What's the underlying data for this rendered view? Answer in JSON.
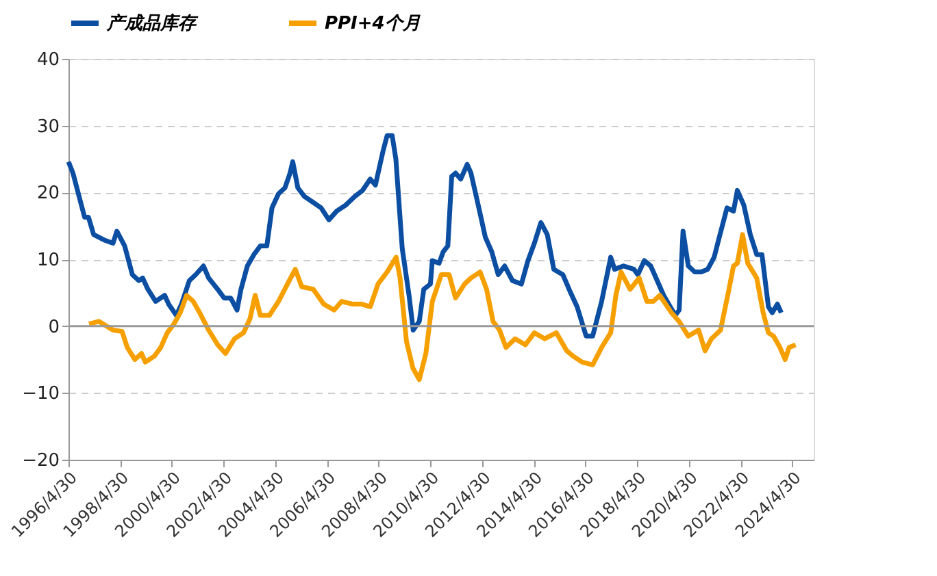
{
  "chart_data": {
    "type": "line",
    "xlim": [
      "1996-04-30",
      "2025-02-25"
    ],
    "xticks": [
      {
        "value": "1996-04-30",
        "label": "1996/4/30"
      },
      {
        "value": "1998-04-30",
        "label": "1998/4/30"
      },
      {
        "value": "2000-04-30",
        "label": "2000/4/30"
      },
      {
        "value": "2002-04-30",
        "label": "2002/4/30"
      },
      {
        "value": "2004-04-30",
        "label": "2004/4/30"
      },
      {
        "value": "2006-04-30",
        "label": "2006/4/30"
      },
      {
        "value": "2008-04-30",
        "label": "2008/4/30"
      },
      {
        "value": "2010-04-30",
        "label": "2010/4/30"
      },
      {
        "value": "2012-04-30",
        "label": "2012/4/30"
      },
      {
        "value": "2014-04-30",
        "label": "2014/4/30"
      },
      {
        "value": "2016-04-30",
        "label": "2016/4/30"
      },
      {
        "value": "2018-04-30",
        "label": "2018/4/30"
      },
      {
        "value": "2020-04-30",
        "label": "2020/4/30"
      },
      {
        "value": "2022-04-30",
        "label": "2022/4/30"
      },
      {
        "value": "2024-04-30",
        "label": "2024/4/30"
      }
    ],
    "ylim": [
      -20,
      40
    ],
    "yticks": [
      -20,
      -10,
      0,
      10,
      20,
      30,
      40
    ],
    "grid": "y",
    "legend": "top",
    "line_style": "solid",
    "marker": "none",
    "series": [
      {
        "name": "产成品库存",
        "color": "#0b4ea2",
        "x": [
          "1996-04-30",
          "1996-07-02",
          "1996-10-19",
          "1996-12-13",
          "1997-02-06",
          "1997-04-20",
          "1997-09-13",
          "1998-01-19",
          "1998-03-14",
          "1998-07-02",
          "1998-10-19",
          "1999-01-19",
          "1999-03-14",
          "1999-05-27",
          "1999-09-13",
          "2000-01-19",
          "2000-03-14",
          "2000-07-02",
          "2000-09-13",
          "2001-01-01",
          "2001-04-01",
          "2001-07-20",
          "2001-10-01",
          "2002-02-06",
          "2002-05-08",
          "2002-08-08",
          "2002-11-06",
          "2003-01-01",
          "2003-04-01",
          "2003-07-02",
          "2003-10-01",
          "2004-01-01",
          "2004-03-14",
          "2004-06-14",
          "2004-09-13",
          "2004-11-24",
          "2005-01-01",
          "2005-03-14",
          "2005-06-14",
          "2005-10-19",
          "2006-02-06",
          "2006-05-27",
          "2006-09-13",
          "2007-01-19",
          "2007-05-27",
          "2007-09-13",
          "2008-01-01",
          "2008-03-14",
          "2008-07-02",
          "2008-08-26",
          "2008-11-06",
          "2008-12-28",
          "2009-03-28",
          "2009-07-02",
          "2009-08-30",
          "2009-11-24",
          "2010-01-26",
          "2010-04-30",
          "2010-05-27",
          "2010-08-30",
          "2010-10-27",
          "2011-01-01",
          "2011-02-25",
          "2011-04-20",
          "2011-07-02",
          "2011-10-01",
          "2011-11-24",
          "2012-03-14",
          "2012-06-14",
          "2012-09-13",
          "2012-12-13",
          "2013-03-14",
          "2013-07-02",
          "2013-11-06",
          "2014-02-06",
          "2014-05-08",
          "2014-08-08",
          "2014-11-06",
          "2015-02-06",
          "2015-06-14",
          "2015-10-01",
          "2016-01-01",
          "2016-05-08",
          "2016-08-08",
          "2016-12-13",
          "2017-04-20",
          "2017-06-14",
          "2017-10-19",
          "2018-03-14",
          "2018-05-08",
          "2018-08-08",
          "2018-11-06",
          "2019-02-06",
          "2019-05-08",
          "2019-08-08",
          "2019-10-19",
          "2019-12-13",
          "2020-02-06",
          "2020-04-20",
          "2020-07-20",
          "2020-10-19",
          "2021-01-19",
          "2021-04-20",
          "2021-07-02",
          "2021-10-19",
          "2022-01-19",
          "2022-03-14",
          "2022-06-14",
          "2022-09-13",
          "2022-12-13",
          "2023-02-25",
          "2023-05-27",
          "2023-07-20",
          "2023-10-01",
          "2023-11-24"
        ],
        "values": [
          24.6,
          22.9,
          18.5,
          16.3,
          16.3,
          13.7,
          12.9,
          12.4,
          14.2,
          12,
          7.7,
          6.8,
          7.2,
          5.5,
          3.7,
          4.6,
          3.3,
          1.6,
          3.3,
          6.8,
          7.7,
          9.0,
          7.2,
          5.5,
          4.2,
          4.2,
          2.4,
          5.5,
          9.0,
          10.7,
          12,
          12,
          17.7,
          19.8,
          20.7,
          22.9,
          24.6,
          20.7,
          19.4,
          18.5,
          17.7,
          15.9,
          17.2,
          18.1,
          19.4,
          20.3,
          22,
          21.1,
          26.3,
          28.5,
          28.5,
          25,
          11.6,
          4.6,
          -0.6,
          0.7,
          5.5,
          6.3,
          9.8,
          9.4,
          11.1,
          12,
          22.4,
          22.9,
          22,
          24.2,
          22.9,
          17.7,
          13.3,
          11.1,
          7.7,
          9.0,
          6.8,
          6.3,
          9.8,
          12.4,
          15.5,
          13.7,
          8.5,
          7.7,
          5,
          2.9,
          -1.5,
          -1.5,
          3.7,
          10.3,
          8.5,
          9,
          8.5,
          7.7,
          9.8,
          9.0,
          6.8,
          4.6,
          2.9,
          1.6,
          2.4,
          14.2,
          9.0,
          8.1,
          8.1,
          8.5,
          10.3,
          13.3,
          17.7,
          17.2,
          20.3,
          18.1,
          13.7,
          10.7,
          10.7,
          2.9,
          2.0,
          3.3,
          2.0
        ]
      },
      {
        "name": "PPI+4个月",
        "color": "#f5a000",
        "x": [
          "1997-02-14",
          "1997-07-02",
          "1998-01-19",
          "1998-05-27",
          "1998-08-08",
          "1998-11-24",
          "1999-02-25",
          "1999-04-20",
          "1999-08-26",
          "1999-11-24",
          "2000-02-25",
          "2000-05-27",
          "2000-08-26",
          "2000-11-24",
          "2001-02-25",
          "2001-05-27",
          "2001-10-01",
          "2002-02-06",
          "2002-05-27",
          "2002-10-01",
          "2003-02-06",
          "2003-05-08",
          "2003-07-20",
          "2003-10-01",
          "2004-02-06",
          "2004-06-14",
          "2004-10-19",
          "2005-02-06",
          "2005-05-08",
          "2005-10-19",
          "2006-03-14",
          "2006-08-08",
          "2006-11-24",
          "2007-04-20",
          "2007-08-26",
          "2008-01-01",
          "2008-04-20",
          "2008-08-26",
          "2009-01-01",
          "2009-02-25",
          "2009-05-27",
          "2009-08-26",
          "2009-11-24",
          "2010-02-25",
          "2010-05-27",
          "2010-10-01",
          "2011-01-19",
          "2011-04-20",
          "2011-08-26",
          "2011-11-24",
          "2012-04-01",
          "2012-07-02",
          "2012-10-01",
          "2013-01-01",
          "2013-04-01",
          "2013-08-08",
          "2014-01-01",
          "2014-05-08",
          "2014-10-01",
          "2015-03-14",
          "2015-08-08",
          "2015-11-06",
          "2016-03-14",
          "2016-08-08",
          "2016-12-13",
          "2017-04-20",
          "2017-07-02",
          "2017-09-13",
          "2018-01-19",
          "2018-05-27",
          "2018-09-13",
          "2018-12-13",
          "2019-03-14",
          "2019-08-26",
          "2019-12-13",
          "2020-04-20",
          "2020-09-13",
          "2020-12-13",
          "2021-03-14",
          "2021-07-20",
          "2021-11-06",
          "2022-01-19",
          "2022-03-14",
          "2022-05-27",
          "2022-08-08",
          "2022-12-13",
          "2023-03-14",
          "2023-05-27",
          "2023-08-08",
          "2023-11-06",
          "2024-01-19",
          "2024-03-14",
          "2024-06-14"
        ],
        "values": [
          0.3,
          0.7,
          -0.6,
          -0.8,
          -3.2,
          -5,
          -4.1,
          -5.4,
          -4.5,
          -3.2,
          -1,
          0.3,
          2.0,
          4.6,
          3.7,
          2.0,
          -0.6,
          -2.8,
          -4.1,
          -1.9,
          -1,
          1.1,
          4.6,
          1.6,
          1.6,
          3.7,
          6.3,
          8.5,
          5.9,
          5.5,
          3.3,
          2.4,
          3.7,
          3.3,
          3.3,
          2.9,
          6.3,
          8.1,
          10.3,
          7.2,
          -2.3,
          -6.3,
          -8,
          -4.1,
          3.7,
          7.7,
          7.7,
          4.2,
          6.3,
          7.2,
          8.1,
          5.5,
          0.7,
          -0.6,
          -3.2,
          -1.9,
          -2.8,
          -1,
          -1.9,
          -1,
          -3.7,
          -4.5,
          -5.4,
          -5.8,
          -3.2,
          -1,
          4.6,
          8.1,
          5.5,
          7.2,
          3.7,
          3.7,
          4.6,
          2.0,
          0.7,
          -1.5,
          -0.6,
          -3.7,
          -1.9,
          -0.6,
          5,
          9.0,
          9.4,
          13.7,
          9.4,
          7.2,
          2.0,
          -1,
          -1.5,
          -3.2,
          -5,
          -3.2,
          -2.8
        ]
      }
    ]
  }
}
